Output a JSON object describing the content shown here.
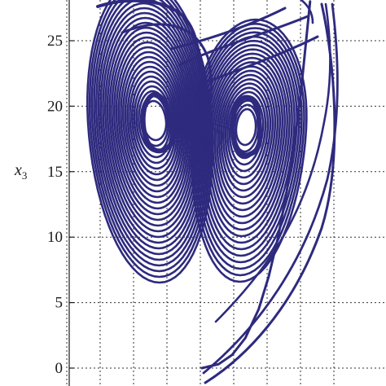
{
  "chart_data": {
    "type": "line",
    "title": "",
    "xlabel": "",
    "ylabel": "x",
    "ylabel_subscript": "3",
    "ylim": [
      -0.5,
      28
    ],
    "yticks": [
      0,
      5,
      10,
      15,
      20,
      25
    ],
    "ytick_labels": [
      "0",
      "5",
      "10",
      "15",
      "20",
      "25"
    ],
    "xlim": [
      -25,
      25
    ],
    "xticks": [
      -20,
      -15,
      -10,
      -5,
      0,
      5,
      10,
      15,
      20
    ],
    "grid": true,
    "series": [
      {
        "color": "#2e2a7e",
        "description_visible": "chaotic double-scroll attractor trajectory",
        "points": [
          [
            0,
            0
          ],
          [
            2.5,
            0.3
          ],
          [
            4.5,
            1.0
          ],
          [
            6.5,
            2.3
          ],
          [
            8.5,
            4.5
          ],
          [
            10.0,
            7.0
          ],
          [
            11.4,
            10.0
          ],
          [
            12.7,
            13.5
          ],
          [
            13.8,
            17.0
          ],
          [
            14.8,
            21.0
          ],
          [
            15.6,
            25.0
          ],
          [
            16.2,
            28.0
          ]
        ]
      }
    ]
  },
  "colors": {
    "trajectory": "#2e2a7e",
    "grid": "#333333",
    "axis": "#1a1a1a"
  }
}
